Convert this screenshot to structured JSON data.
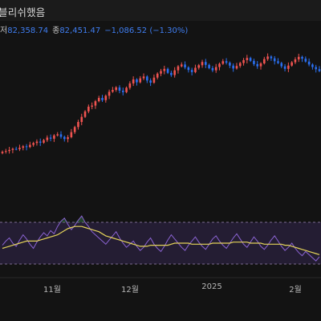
{
  "header": {
    "title": "블리쉬했음"
  },
  "legend": {
    "low_label": "저",
    "low_value": "82,358.74",
    "close_label": "종",
    "close_value": "82,451.47",
    "change": "−1,086.52",
    "change_pct": "(−1.30%)"
  },
  "x_axis": {
    "labels": [
      "11월",
      "12월",
      "2025",
      "2월"
    ]
  },
  "colors": {
    "up": "#ef5350",
    "down": "#2a6ff0",
    "rsi": "#8a63d2",
    "rsi_ma": "#e4d35a",
    "band_fill": "#241d33"
  },
  "chart_data": {
    "type": "line",
    "title": "",
    "xlabel": "",
    "ylabel": "",
    "rsi_levels": [
      70,
      30
    ],
    "price_closes": [
      62.4,
      62.6,
      62.9,
      63.2,
      63.1,
      63.5,
      63.9,
      63.7,
      64.3,
      64.8,
      65.2,
      64.9,
      65.6,
      66.3,
      66.0,
      66.9,
      67.2,
      66.5,
      65.9,
      66.4,
      67.8,
      69.2,
      70.6,
      72.0,
      73.5,
      74.8,
      75.1,
      76.3,
      77.2,
      76.6,
      77.8,
      78.9,
      79.4,
      80.1,
      79.2,
      78.8,
      80.0,
      81.2,
      82.3,
      81.5,
      82.6,
      83.1,
      82.0,
      81.4,
      82.8,
      83.9,
      84.6,
      85.2,
      84.1,
      83.5,
      84.8,
      85.9,
      86.4,
      85.6,
      84.9,
      84.3,
      85.5,
      86.2,
      87.1,
      86.3,
      85.4,
      84.8,
      85.7,
      86.6,
      87.3,
      86.9,
      86.1,
      85.3,
      86.0,
      86.8,
      87.6,
      88.2,
      87.4,
      86.5,
      85.9,
      86.7,
      87.9,
      88.6,
      88.1,
      87.3,
      86.8,
      85.9,
      85.2,
      86.1,
      87.0,
      87.8,
      88.5,
      88.0,
      87.2,
      86.4,
      85.7,
      85.1,
      84.6
    ],
    "rsi_values": [
      48,
      52,
      55,
      50,
      47,
      53,
      58,
      54,
      49,
      45,
      51,
      56,
      60,
      57,
      62,
      59,
      66,
      71,
      74,
      68,
      63,
      67,
      72,
      76,
      70,
      66,
      61,
      58,
      55,
      52,
      49,
      53,
      57,
      61,
      55,
      50,
      46,
      49,
      52,
      47,
      43,
      46,
      51,
      55,
      49,
      45,
      42,
      47,
      53,
      58,
      54,
      50,
      46,
      43,
      48,
      52,
      56,
      51,
      47,
      44,
      49,
      54,
      57,
      52,
      48,
      45,
      50,
      55,
      59,
      54,
      49,
      46,
      51,
      56,
      52,
      47,
      44,
      48,
      53,
      57,
      52,
      47,
      43,
      46,
      50,
      45,
      41,
      38,
      42,
      39,
      36,
      33,
      37
    ],
    "rsi_ma_values": [
      45,
      46,
      47,
      48,
      49,
      50,
      51,
      52,
      52,
      52,
      52,
      53,
      54,
      55,
      56,
      57,
      58,
      60,
      62,
      64,
      65,
      66,
      66,
      66,
      65,
      64,
      63,
      62,
      61,
      59,
      57,
      56,
      55,
      54,
      53,
      52,
      51,
      50,
      49,
      48,
      47,
      47,
      47,
      48,
      48,
      48,
      48,
      48,
      48,
      49,
      50,
      50,
      50,
      50,
      50,
      49,
      49,
      49,
      49,
      49,
      49,
      50,
      50,
      50,
      50,
      50,
      50,
      51,
      51,
      51,
      51,
      51,
      50,
      50,
      50,
      50,
      49,
      49,
      49,
      49,
      49,
      49,
      48,
      48,
      47,
      46,
      45,
      44,
      43,
      42,
      41,
      40,
      39
    ]
  }
}
